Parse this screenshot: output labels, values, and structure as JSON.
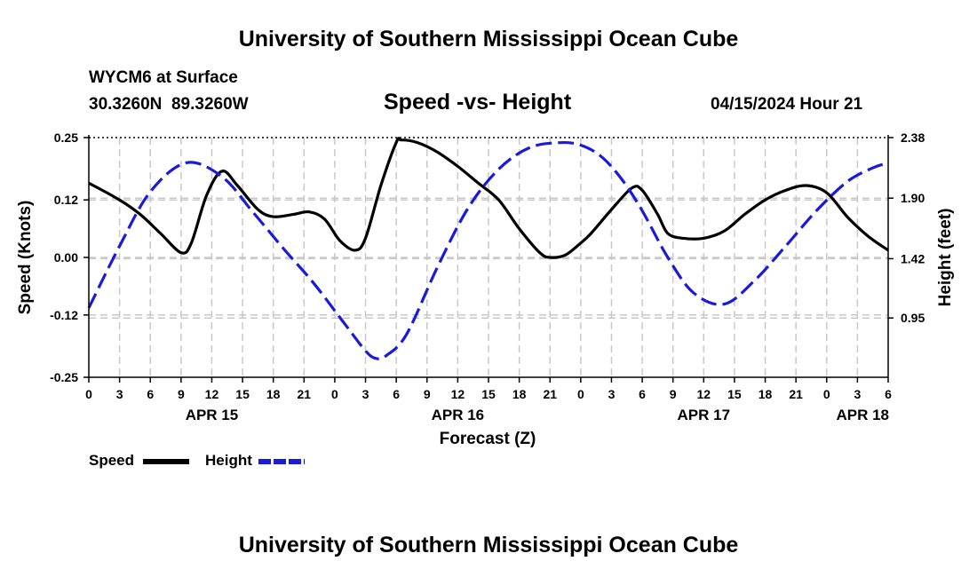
{
  "header": {
    "title": "University of Southern Mississippi Ocean Cube",
    "station": "WYCM6 at Surface",
    "coords": "30.3260N  89.3260W",
    "subtitle": "Speed -vs- Height",
    "datetime": "04/15/2024 Hour 21"
  },
  "footer": {
    "title": "University of Southern Mississippi Ocean Cube"
  },
  "legend": {
    "speed_label": "Speed",
    "height_label": "Height"
  },
  "colors": {
    "speed": "#000000",
    "height": "#1a1adc",
    "grid": "#c8c8c8"
  },
  "chart_data": {
    "type": "line",
    "xlabel": "Forecast (Z)",
    "ylabel": "Speed (Knots)",
    "ylabel_right": "Height (feet)",
    "xlim": [
      0,
      78
    ],
    "ylim": [
      -0.25,
      0.25
    ],
    "ylim_right": [
      0.48,
      2.38
    ],
    "x_ticks": [
      0,
      3,
      6,
      9,
      12,
      15,
      18,
      21,
      24,
      27,
      30,
      33,
      36,
      39,
      42,
      45,
      48,
      51,
      54,
      57,
      60,
      63,
      66,
      69,
      72,
      75,
      78
    ],
    "x_tick_labels": [
      "0",
      "3",
      "6",
      "9",
      "12",
      "15",
      "18",
      "21",
      "0",
      "3",
      "6",
      "9",
      "12",
      "15",
      "18",
      "21",
      "0",
      "3",
      "6",
      "9",
      "12",
      "15",
      "18",
      "21",
      "0",
      "3",
      "6"
    ],
    "date_labels": [
      {
        "x": 12,
        "label": "APR 15"
      },
      {
        "x": 36,
        "label": "APR 16"
      },
      {
        "x": 60,
        "label": "APR 17"
      },
      {
        "x": 78,
        "label": "APR 18"
      }
    ],
    "y_ticks": [
      0.25,
      0.12,
      0.0,
      -0.12,
      -0.25
    ],
    "y_tick_labels": [
      "0.25",
      "0.12",
      "0.00",
      "-0.12",
      "-0.25"
    ],
    "y_right_ticks": [
      2.38,
      1.9,
      1.42,
      0.95
    ],
    "y_right_tick_labels": [
      "2.38",
      "1.90",
      "1.42",
      "0.95"
    ],
    "grid": true,
    "series": [
      {
        "name": "Speed",
        "axis": "left",
        "style": "solid",
        "x": [
          0,
          3,
          5,
          7,
          9,
          10,
          11.5,
          13,
          14.5,
          16.5,
          18,
          20,
          21.5,
          23,
          24.5,
          26,
          27,
          28.5,
          30,
          30.5,
          32,
          34,
          36,
          38,
          40,
          42,
          44,
          45,
          46.5,
          48,
          49,
          51,
          53,
          54,
          55.5,
          56.5,
          58,
          60,
          62,
          64,
          66,
          68,
          70,
          72,
          74,
          76,
          78
        ],
        "values": [
          0.155,
          0.12,
          0.09,
          0.05,
          0.01,
          0.03,
          0.13,
          0.18,
          0.15,
          0.1,
          0.085,
          0.09,
          0.095,
          0.08,
          0.035,
          0.015,
          0.04,
          0.15,
          0.24,
          0.245,
          0.24,
          0.22,
          0.19,
          0.155,
          0.12,
          0.06,
          0.01,
          0.0,
          0.005,
          0.03,
          0.05,
          0.1,
          0.145,
          0.14,
          0.09,
          0.05,
          0.04,
          0.04,
          0.055,
          0.09,
          0.12,
          0.14,
          0.15,
          0.135,
          0.085,
          0.045,
          0.015
        ]
      },
      {
        "name": "Height",
        "axis": "right",
        "style": "dashed",
        "x": [
          0,
          3,
          6,
          9.5,
          13,
          16,
          19,
          22,
          25,
          27,
          28,
          29,
          31,
          34,
          37,
          40,
          43,
          46,
          48,
          50,
          52,
          54,
          56.5,
          59,
          62,
          65,
          68,
          71,
          74,
          76.5,
          78
        ],
        "values": [
          1.03,
          1.52,
          1.95,
          2.18,
          2.07,
          1.79,
          1.5,
          1.22,
          0.9,
          0.69,
          0.63,
          0.65,
          0.82,
          1.35,
          1.82,
          2.13,
          2.3,
          2.34,
          2.32,
          2.23,
          2.05,
          1.8,
          1.43,
          1.15,
          1.06,
          1.25,
          1.52,
          1.8,
          2.03,
          2.14,
          2.18
        ]
      }
    ]
  }
}
